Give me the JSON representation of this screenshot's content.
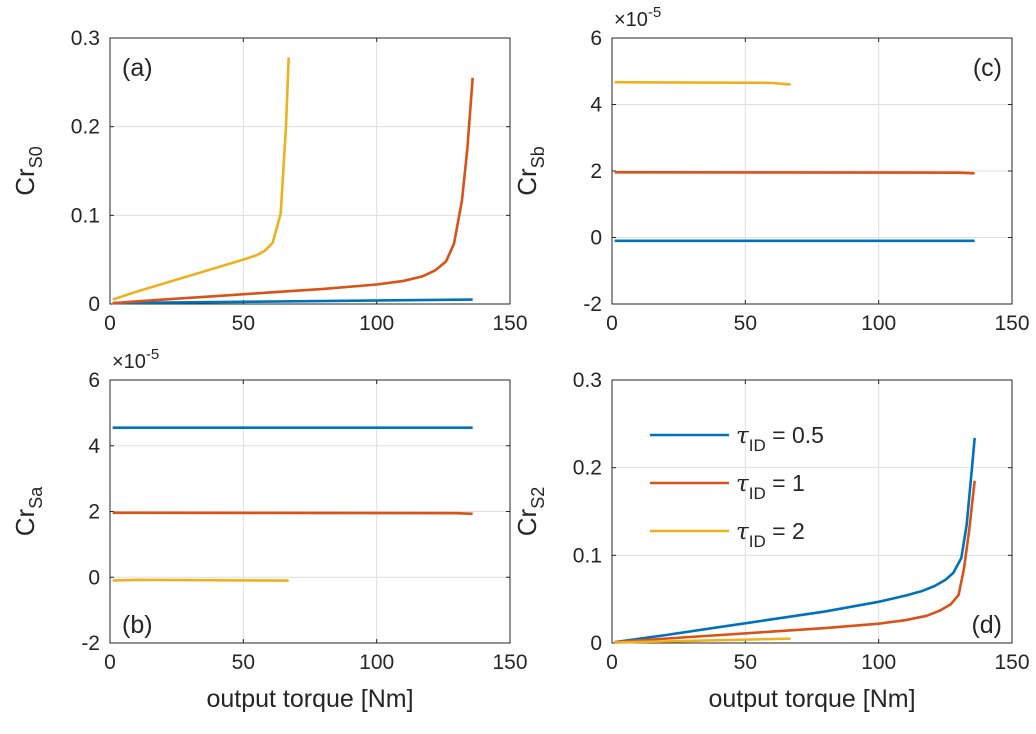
{
  "colors": {
    "tau_05": "#0072BD",
    "tau_1": "#D95319",
    "tau_2": "#EDB120",
    "grid": "#dfdfdf",
    "axis": "#262626"
  },
  "legend": [
    {
      "prefix": "τ",
      "sub": "ID",
      "suffix": " = 0.5",
      "color": "#0072BD"
    },
    {
      "prefix": "τ",
      "sub": "ID",
      "suffix": " = 1",
      "color": "#D95319"
    },
    {
      "prefix": "τ",
      "sub": "ID",
      "suffix": " = 2",
      "color": "#EDB120"
    }
  ],
  "chart_data": [
    {
      "id": "a",
      "type": "line",
      "label": "(a)",
      "label_pos": "top-left",
      "ylabel": "Cr",
      "ylabel_sub": "S0",
      "xlabel": "",
      "exponent": "",
      "xlim": [
        0,
        150
      ],
      "ylim": [
        0,
        0.3
      ],
      "xticks": [
        "0",
        "50",
        "100",
        "150"
      ],
      "xtick_values": [
        0,
        50,
        100,
        150
      ],
      "yticks": [
        "0",
        "0.1",
        "0.2",
        "0.3"
      ],
      "ytick_values": [
        0,
        0.1,
        0.2,
        0.3
      ],
      "grid": true,
      "series": [
        {
          "color": "#0072BD",
          "x": [
            1,
            136
          ],
          "y": [
            0.001,
            0.005
          ]
        },
        {
          "color": "#D95319",
          "x": [
            1,
            20,
            40,
            60,
            80,
            100,
            110,
            117,
            122,
            126,
            129,
            132,
            134,
            136
          ],
          "y": [
            0.001,
            0.005,
            0.009,
            0.013,
            0.017,
            0.022,
            0.026,
            0.031,
            0.038,
            0.048,
            0.068,
            0.117,
            0.175,
            0.255
          ]
        },
        {
          "color": "#EDB120",
          "x": [
            1,
            10,
            20,
            30,
            40,
            50,
            55,
            58,
            61,
            64,
            66,
            67
          ],
          "y": [
            0.005,
            0.014,
            0.023,
            0.032,
            0.041,
            0.05,
            0.055,
            0.06,
            0.069,
            0.102,
            0.2,
            0.278
          ]
        }
      ]
    },
    {
      "id": "c",
      "type": "line",
      "label": "(c)",
      "label_pos": "top-right",
      "ylabel": "Cr",
      "ylabel_sub": "Sb",
      "xlabel": "",
      "exponent": "×10^-5",
      "exponent_base": "×10",
      "exponent_pow": "-5",
      "xlim": [
        0,
        150
      ],
      "ylim": [
        -2,
        6
      ],
      "xticks": [
        "0",
        "50",
        "100",
        "150"
      ],
      "xtick_values": [
        0,
        50,
        100,
        150
      ],
      "yticks": [
        "-2",
        "0",
        "2",
        "4",
        "6"
      ],
      "ytick_values": [
        -2,
        0,
        2,
        4,
        6
      ],
      "grid": true,
      "series": [
        {
          "color": "#0072BD",
          "x": [
            1,
            136
          ],
          "y": [
            -0.1,
            -0.1
          ]
        },
        {
          "color": "#D95319",
          "x": [
            1,
            130,
            136
          ],
          "y": [
            1.96,
            1.95,
            1.93
          ]
        },
        {
          "color": "#EDB120",
          "x": [
            1,
            60,
            67
          ],
          "y": [
            4.67,
            4.65,
            4.6
          ]
        }
      ]
    },
    {
      "id": "b",
      "type": "line",
      "label": "(b)",
      "label_pos": "bottom-left",
      "ylabel": "Cr",
      "ylabel_sub": "Sa",
      "xlabel": "output torque [Nm]",
      "exponent": "×10^-5",
      "exponent_base": "×10",
      "exponent_pow": "-5",
      "xlim": [
        0,
        150
      ],
      "ylim": [
        -2,
        6
      ],
      "xticks": [
        "0",
        "50",
        "100",
        "150"
      ],
      "xtick_values": [
        0,
        50,
        100,
        150
      ],
      "yticks": [
        "-2",
        "0",
        "2",
        "4",
        "6"
      ],
      "ytick_values": [
        -2,
        0,
        2,
        4,
        6
      ],
      "grid": true,
      "series": [
        {
          "color": "#0072BD",
          "x": [
            1,
            136
          ],
          "y": [
            4.55,
            4.55
          ]
        },
        {
          "color": "#D95319",
          "x": [
            1,
            130,
            136
          ],
          "y": [
            1.96,
            1.95,
            1.93
          ]
        },
        {
          "color": "#EDB120",
          "x": [
            1,
            10,
            67
          ],
          "y": [
            -0.1,
            -0.08,
            -0.1
          ]
        }
      ]
    },
    {
      "id": "d",
      "type": "line",
      "label": "(d)",
      "label_pos": "bottom-right",
      "ylabel": "Cr",
      "ylabel_sub": "S2",
      "xlabel": "output torque [Nm]",
      "exponent": "",
      "xlim": [
        0,
        150
      ],
      "ylim": [
        0,
        0.3
      ],
      "xticks": [
        "0",
        "50",
        "100",
        "150"
      ],
      "xtick_values": [
        0,
        50,
        100,
        150
      ],
      "yticks": [
        "0",
        "0.1",
        "0.2",
        "0.3"
      ],
      "ytick_values": [
        0,
        0.1,
        0.2,
        0.3
      ],
      "grid": true,
      "legend": true,
      "series": [
        {
          "color": "#0072BD",
          "x": [
            1,
            20,
            40,
            60,
            80,
            100,
            110,
            116,
            121,
            125,
            128,
            131,
            133,
            135,
            136
          ],
          "y": [
            0.001,
            0.009,
            0.018,
            0.027,
            0.036,
            0.047,
            0.054,
            0.059,
            0.065,
            0.072,
            0.08,
            0.097,
            0.135,
            0.2,
            0.234
          ]
        },
        {
          "color": "#D95319",
          "x": [
            1,
            20,
            40,
            60,
            80,
            100,
            110,
            118,
            123,
            127,
            130,
            132,
            134,
            136
          ],
          "y": [
            0.001,
            0.005,
            0.009,
            0.013,
            0.017,
            0.022,
            0.026,
            0.031,
            0.037,
            0.044,
            0.055,
            0.085,
            0.13,
            0.185
          ]
        },
        {
          "color": "#EDB120",
          "x": [
            1,
            67
          ],
          "y": [
            0.0005,
            0.005
          ]
        }
      ]
    }
  ]
}
